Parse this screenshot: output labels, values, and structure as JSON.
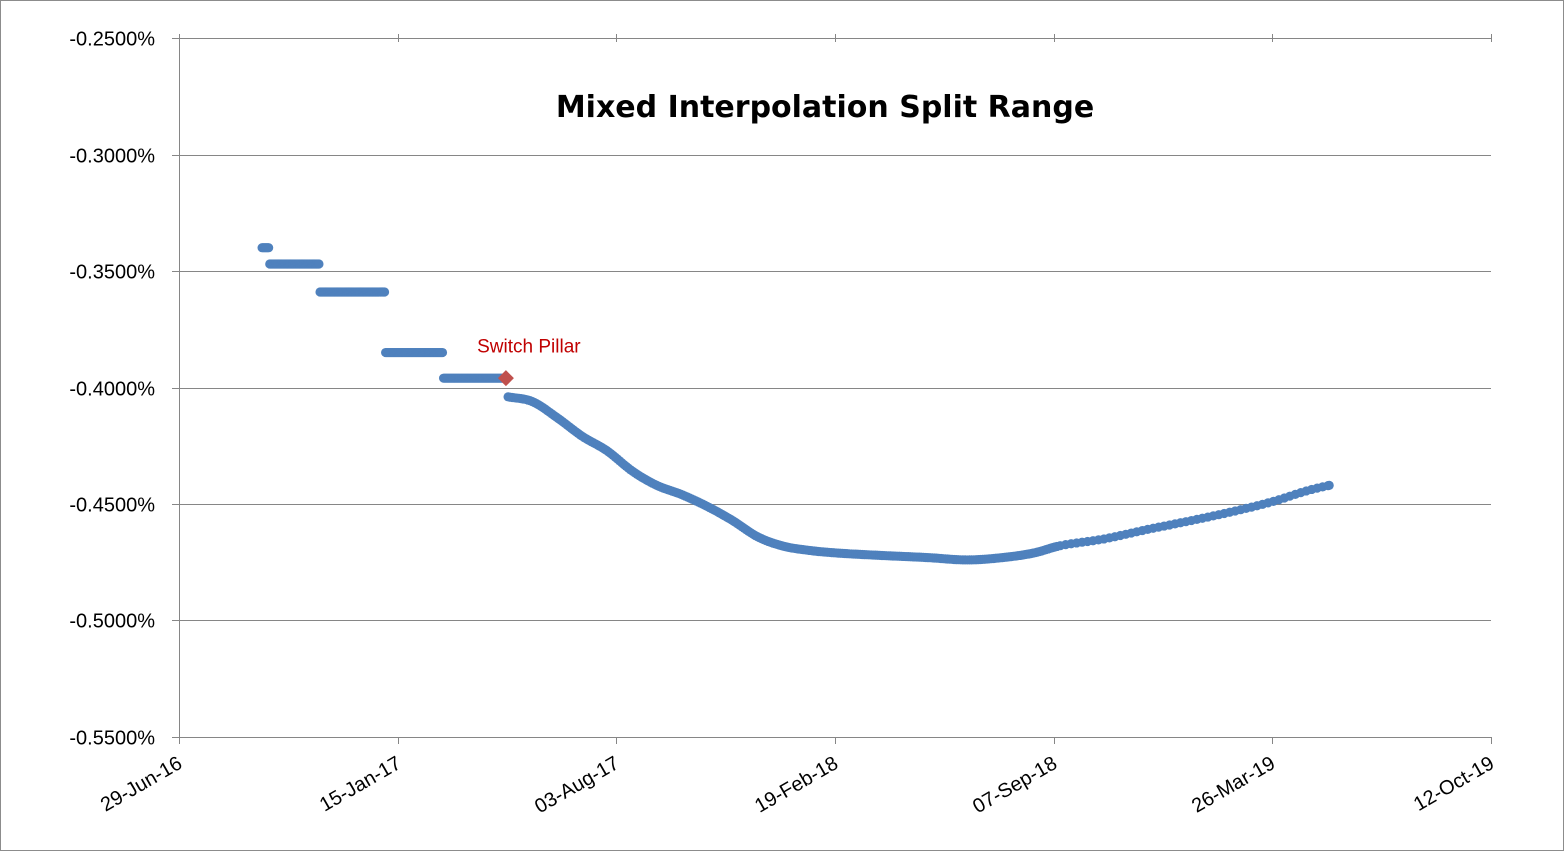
{
  "chart_data": {
    "type": "scatter",
    "title": "Mixed Interpolation Split Range",
    "xlabel": "",
    "ylabel": "",
    "x_axis": {
      "type": "date",
      "min": "2016-06-29",
      "max": "2019-10-12",
      "tick_labels": [
        "29-Jun-16",
        "15-Jan-17",
        "03-Aug-17",
        "19-Feb-18",
        "07-Sep-18",
        "26-Mar-19",
        "12-Oct-19"
      ],
      "tick_dates": [
        "2016-06-29",
        "2017-01-15",
        "2017-08-03",
        "2018-02-19",
        "2018-09-07",
        "2019-03-26",
        "2019-10-12"
      ]
    },
    "y_axis": {
      "min": -0.55,
      "max": -0.25,
      "step": 0.05,
      "unit": "%",
      "tick_labels": [
        "-0.2500%",
        "-0.3000%",
        "-0.3500%",
        "-0.4000%",
        "-0.4500%",
        "-0.5000%",
        "-0.5500%"
      ]
    },
    "grid": true,
    "legend": "none",
    "marker_color": "#4f81bd",
    "highlight_color": "#c0504d",
    "annotation_color": "#c00000",
    "series": [
      {
        "segments": [
          {
            "x_start": "2016-09-13",
            "x_end": "2016-09-19",
            "y": -0.34
          },
          {
            "x_start": "2016-09-20",
            "x_end": "2016-11-04",
            "y": -0.347
          },
          {
            "x_start": "2016-11-05",
            "x_end": "2017-01-03",
            "y": -0.359
          },
          {
            "x_start": "2017-01-04",
            "x_end": "2017-02-25",
            "y": -0.385
          },
          {
            "x_start": "2017-02-26",
            "x_end": "2017-04-23",
            "y": -0.396
          }
        ],
        "curve_points": [
          {
            "x": "2017-04-26",
            "y": -0.404
          },
          {
            "x": "2017-05-18",
            "y": -0.406
          },
          {
            "x": "2017-06-10",
            "y": -0.413
          },
          {
            "x": "2017-07-03",
            "y": -0.421
          },
          {
            "x": "2017-07-25",
            "y": -0.427
          },
          {
            "x": "2017-08-18",
            "y": -0.436
          },
          {
            "x": "2017-09-09",
            "y": -0.442
          },
          {
            "x": "2017-10-02",
            "y": -0.446
          },
          {
            "x": "2017-10-25",
            "y": -0.451
          },
          {
            "x": "2017-11-17",
            "y": -0.457
          },
          {
            "x": "2017-12-10",
            "y": -0.464
          },
          {
            "x": "2018-01-02",
            "y": -0.468
          },
          {
            "x": "2018-01-28",
            "y": -0.47
          },
          {
            "x": "2018-02-20",
            "y": -0.471
          },
          {
            "x": "2018-03-30",
            "y": -0.472
          },
          {
            "x": "2018-05-15",
            "y": -0.473
          },
          {
            "x": "2018-06-20",
            "y": -0.474
          },
          {
            "x": "2018-07-22",
            "y": -0.473
          },
          {
            "x": "2018-08-20",
            "y": -0.471
          },
          {
            "x": "2018-09-12",
            "y": -0.468
          },
          {
            "x": "2018-10-23",
            "y": -0.465
          },
          {
            "x": "2018-12-01",
            "y": -0.461
          },
          {
            "x": "2019-01-12",
            "y": -0.457
          },
          {
            "x": "2019-02-20",
            "y": -0.453
          },
          {
            "x": "2019-03-26",
            "y": -0.449
          },
          {
            "x": "2019-04-29",
            "y": -0.444
          },
          {
            "x": "2019-05-17",
            "y": -0.442
          }
        ]
      }
    ],
    "highlight_point": {
      "x": "2017-04-24",
      "y": -0.396,
      "marker": "diamond"
    },
    "annotations": [
      {
        "text": "Switch Pillar",
        "x": "2017-05-15",
        "y": -0.3824
      }
    ]
  }
}
